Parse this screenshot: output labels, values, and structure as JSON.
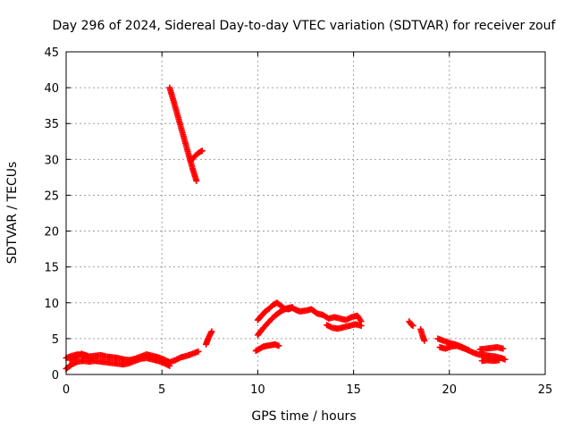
{
  "chart_data": {
    "type": "scatter",
    "title": "Day 296 of 2024, Sidereal Day-to-day VTEC variation (SDTVAR) for receiver zouf",
    "xlabel": "GPS time / hours",
    "ylabel": "SDTVAR / TECUs",
    "xlim": [
      0,
      25
    ],
    "ylim": [
      0,
      45
    ],
    "xticks": [
      "0",
      "5",
      "10",
      "15",
      "20",
      "25"
    ],
    "yticks": [
      "0",
      "5",
      "10",
      "15",
      "20",
      "25",
      "30",
      "35",
      "40",
      "45"
    ],
    "grid": true,
    "marker_color": "#ff0000",
    "series": [
      {
        "name": "SDTVAR",
        "segments": [
          {
            "x": [
              0.0,
              0.3,
              0.6,
              0.9,
              1.2,
              1.5,
              1.8,
              2.1,
              2.4,
              2.7,
              3.0,
              3.3,
              3.6,
              3.9,
              4.2,
              4.5,
              4.8,
              5.1,
              5.4,
              5.7,
              6.0,
              6.3,
              6.6,
              6.9
            ],
            "y": [
              2.3,
              2.6,
              2.8,
              2.7,
              2.5,
              2.6,
              2.7,
              2.5,
              2.4,
              2.3,
              2.1,
              2.0,
              2.2,
              2.5,
              2.8,
              2.6,
              2.4,
              2.1,
              1.7,
              2.0,
              2.4,
              2.6,
              2.9,
              3.2
            ]
          },
          {
            "x": [
              0.0,
              0.3,
              0.6,
              0.9,
              1.2,
              1.5,
              1.8,
              2.1,
              2.4,
              2.7,
              3.0,
              3.3,
              3.6,
              3.9,
              4.2,
              4.5,
              4.8,
              5.1,
              5.4
            ],
            "y": [
              0.8,
              1.4,
              1.8,
              1.9,
              1.8,
              1.9,
              1.8,
              1.7,
              1.6,
              1.5,
              1.4,
              1.6,
              1.9,
              2.2,
              2.3,
              2.1,
              1.9,
              1.6,
              1.2
            ]
          },
          {
            "x": [
              0.2,
              0.5,
              0.8,
              1.1,
              1.4
            ],
            "y": [
              2.0,
              2.4,
              2.9,
              2.6,
              2.2
            ]
          },
          {
            "x": [
              5.4,
              5.6,
              5.8,
              6.0,
              6.2,
              6.4,
              6.6,
              6.8
            ],
            "y": [
              40.0,
              38.2,
              36.3,
              34.4,
              32.5,
              30.6,
              28.7,
              27.0
            ]
          },
          {
            "x": [
              6.5,
              6.7,
              6.9,
              7.1
            ],
            "y": [
              29.8,
              30.4,
              30.9,
              31.2
            ]
          },
          {
            "x": [
              7.3,
              7.4,
              7.5,
              7.6
            ],
            "y": [
              4.2,
              4.9,
              5.5,
              6.0
            ]
          },
          {
            "x": [
              9.9,
              10.1,
              10.3,
              10.5,
              10.7,
              10.9,
              11.1
            ],
            "y": [
              3.3,
              3.6,
              3.9,
              4.0,
              4.1,
              4.2,
              4.0
            ]
          },
          {
            "x": [
              10.0,
              10.2,
              10.4,
              10.6,
              10.8,
              11.0,
              11.2,
              11.4,
              11.6,
              11.8,
              12.0,
              12.2,
              12.5,
              12.8,
              13.1,
              13.4,
              13.7,
              14.0,
              14.3,
              14.6,
              14.9,
              15.2,
              15.4
            ],
            "y": [
              7.6,
              8.2,
              8.8,
              9.2,
              9.7,
              10.0,
              9.6,
              9.2,
              9.1,
              9.3,
              9.0,
              8.8,
              8.9,
              9.1,
              8.5,
              8.3,
              7.8,
              8.0,
              7.8,
              7.6,
              8.0,
              8.2,
              7.4
            ]
          },
          {
            "x": [
              10.0,
              10.3,
              10.6,
              10.9,
              11.2,
              11.5,
              11.8
            ],
            "y": [
              5.5,
              6.5,
              7.4,
              8.2,
              8.8,
              9.2,
              9.4
            ]
          },
          {
            "x": [
              13.6,
              13.9,
              14.2,
              14.5,
              14.8,
              15.1,
              15.4
            ],
            "y": [
              6.9,
              6.5,
              6.4,
              6.6,
              6.8,
              7.0,
              6.8
            ]
          },
          {
            "x": [
              17.9,
              18.0,
              18.1
            ],
            "y": [
              7.4,
              7.0,
              6.8
            ]
          },
          {
            "x": [
              18.5,
              18.6,
              18.7
            ],
            "y": [
              6.3,
              5.4,
              4.7
            ]
          },
          {
            "x": [
              19.4,
              19.7,
              20.0,
              20.3,
              20.6,
              20.9,
              21.2,
              21.5,
              21.8,
              22.1,
              22.4,
              22.7,
              22.9
            ],
            "y": [
              5.0,
              4.7,
              4.4,
              4.2,
              3.9,
              3.5,
              3.1,
              2.8,
              2.7,
              2.6,
              2.5,
              2.3,
              2.1
            ]
          },
          {
            "x": [
              19.5,
              19.8,
              20.1,
              20.4,
              20.7,
              21.0
            ],
            "y": [
              3.8,
              3.6,
              3.9,
              4.0,
              3.7,
              3.4
            ]
          },
          {
            "x": [
              21.6,
              21.9,
              22.2,
              22.5,
              22.8
            ],
            "y": [
              3.5,
              3.6,
              3.7,
              3.8,
              3.6
            ]
          },
          {
            "x": [
              21.7,
              22.0,
              22.3,
              22.6
            ],
            "y": [
              1.9,
              2.0,
              1.9,
              2.0
            ]
          }
        ]
      }
    ]
  }
}
